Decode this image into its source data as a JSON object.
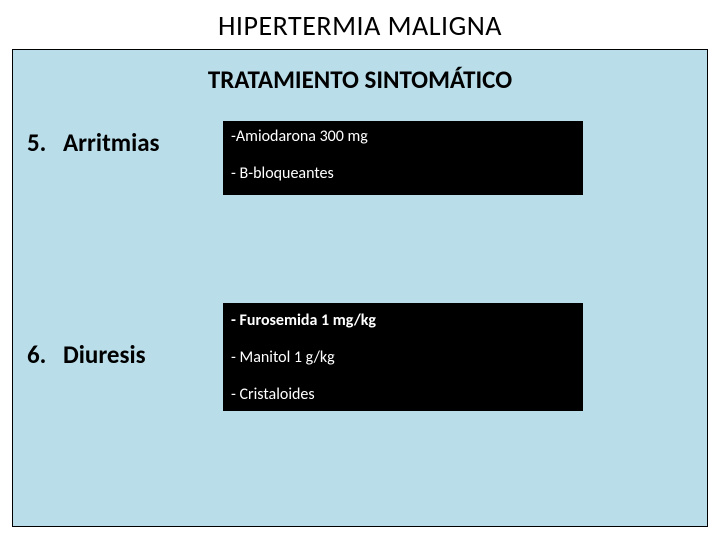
{
  "colors": {
    "page_bg": "#ffffff",
    "panel_bg": "#b9dde9",
    "panel_border": "#000000",
    "box_bg": "#000000",
    "box_text": "#ffffff",
    "title_text": "#000000"
  },
  "typography": {
    "title_fontsize": 28,
    "subtitle_fontsize": 25,
    "label_fontsize": 25,
    "box_fontsize": 16,
    "font_family": "Calibri, Arial, sans-serif"
  },
  "title": "HIPERTERMIA MALIGNA",
  "subtitle": "TRATAMIENTO SINTOMÁTICO",
  "sections": [
    {
      "number": "5.",
      "label": "Arritmias",
      "box_lines": [
        {
          "text": "-Amiodarona 300 mg",
          "bold": false
        },
        {
          "text": "- B-bloqueantes",
          "bold": false
        }
      ]
    },
    {
      "number": "6.",
      "label": "Diuresis",
      "box_lines": [
        {
          "text": "- Furosemida 1 mg/kg",
          "bold": true
        },
        {
          "text": "- Manitol 1 g/kg",
          "bold": false
        },
        {
          "text": "- Cristaloides",
          "bold": false
        }
      ]
    }
  ]
}
